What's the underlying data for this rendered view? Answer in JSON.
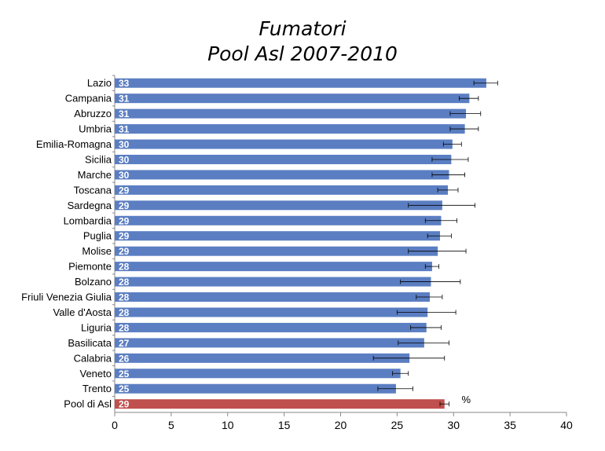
{
  "chart_data": {
    "type": "bar",
    "orientation": "horizontal",
    "title": "Fumatori",
    "subtitle": "Pool Asl 2007-2010",
    "unit_label": "%",
    "xlim": [
      0,
      40
    ],
    "xticks": [
      0,
      5,
      10,
      15,
      20,
      25,
      30,
      35,
      40
    ],
    "grid": false,
    "categories": [
      "Lazio",
      "Campania",
      "Abruzzo",
      "Umbria",
      "Emilia-Romagna",
      "Sicilia",
      "Marche",
      "Toscana",
      "Sardegna",
      "Lombardia",
      "Puglia",
      "Molise",
      "Piemonte",
      "Bolzano",
      "Friuli Venezia Giulia",
      "Valle d'Aosta",
      "Liguria",
      "Basilicata",
      "Calabria",
      "Veneto",
      "Trento",
      "Pool di Asl"
    ],
    "values": [
      32.9,
      31.4,
      31.1,
      31.0,
      29.9,
      29.8,
      29.6,
      29.5,
      29.0,
      28.9,
      28.8,
      28.6,
      28.1,
      28.0,
      27.9,
      27.7,
      27.6,
      27.4,
      26.1,
      25.3,
      24.9,
      29.2
    ],
    "labels": [
      "33",
      "31",
      "31",
      "31",
      "30",
      "30",
      "30",
      "29",
      "29",
      "29",
      "29",
      "29",
      "28",
      "28",
      "28",
      "28",
      "28",
      "27",
      "26",
      "25",
      "25",
      "29"
    ],
    "ci_low": [
      31.8,
      30.5,
      29.7,
      29.7,
      29.1,
      28.1,
      28.1,
      28.6,
      26.0,
      27.5,
      27.7,
      26.0,
      27.5,
      25.3,
      26.7,
      25.0,
      26.2,
      25.1,
      22.9,
      24.6,
      23.3,
      28.8
    ],
    "ci_high": [
      33.9,
      32.2,
      32.4,
      32.2,
      30.7,
      31.3,
      31.0,
      30.4,
      31.9,
      30.3,
      29.8,
      31.1,
      28.7,
      30.6,
      29.0,
      30.2,
      28.9,
      29.6,
      29.2,
      26.0,
      26.4,
      29.6
    ],
    "colors": {
      "bar": "#5b7ec2",
      "highlight": "#c0504d",
      "highlight_category": "Pool di Asl",
      "label_text": "#ffffff",
      "error_bar": "#000000"
    }
  }
}
